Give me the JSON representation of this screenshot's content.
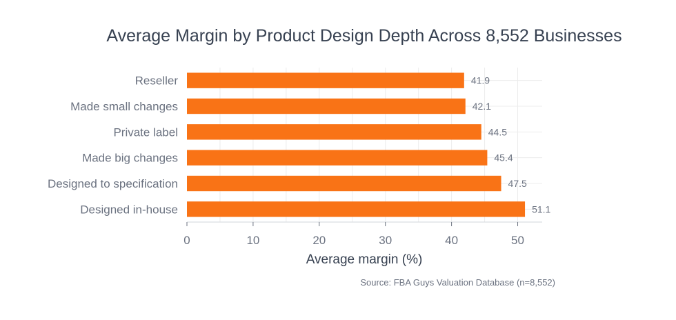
{
  "chart_data": {
    "type": "bar",
    "orientation": "horizontal",
    "title": "Average Margin by Product Design Depth Across 8,552 Businesses",
    "xlabel": "Average margin (%)",
    "ylabel": "",
    "categories": [
      "Reseller",
      "Made small changes",
      "Private label",
      "Made big changes",
      "Designed to specification",
      "Designed in-house"
    ],
    "values": [
      41.9,
      42.1,
      44.5,
      45.4,
      47.5,
      51.1
    ],
    "data_labels": [
      "41.9",
      "42.1",
      "44.5",
      "45.4",
      "47.5",
      "51.1"
    ],
    "xlim": [
      0,
      53.7
    ],
    "xticks": [
      0,
      10,
      20,
      30,
      40,
      50
    ],
    "xtick_labels": [
      "0",
      "10",
      "20",
      "30",
      "40",
      "50"
    ],
    "grid": true,
    "bar_color": "#f97316",
    "source": "Source: FBA Guys Valuation Database (n=8,552)"
  }
}
